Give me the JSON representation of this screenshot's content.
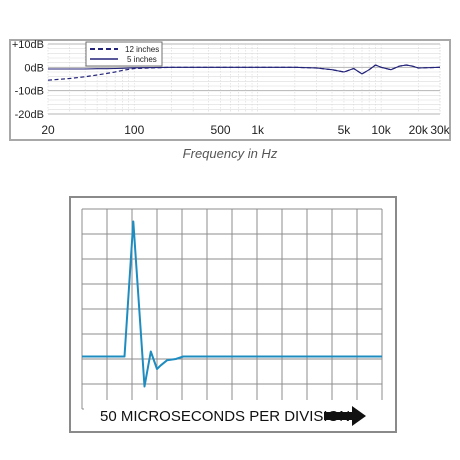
{
  "chart_data": [
    {
      "type": "line",
      "xlabel": "Frequency in Hz",
      "x_scale": "log",
      "xlim": [
        20,
        30000
      ],
      "ylim": [
        -20,
        10
      ],
      "x_ticks": [
        {
          "value": 20,
          "label": "20"
        },
        {
          "value": 100,
          "label": "100"
        },
        {
          "value": 500,
          "label": "500"
        },
        {
          "value": 1000,
          "label": "1k"
        },
        {
          "value": 5000,
          "label": "5k"
        },
        {
          "value": 10000,
          "label": "10k"
        },
        {
          "value": 20000,
          "label": "20k"
        },
        {
          "value": 30000,
          "label": "30k"
        }
      ],
      "y_ticks": [
        {
          "value": 10,
          "label": "+10dB"
        },
        {
          "value": 0,
          "label": "0dB"
        },
        {
          "value": -10,
          "label": "-10dB"
        },
        {
          "value": -20,
          "label": "-20dB"
        }
      ],
      "grid": true,
      "legend": "top-left",
      "series": [
        {
          "name": "12 inches",
          "style": "dashed",
          "color": "#23237a",
          "x": [
            20,
            30,
            40,
            50,
            60,
            70,
            80,
            100,
            200,
            500,
            1000,
            2000,
            3000,
            4000,
            5000,
            6000,
            7000,
            8000,
            9000,
            10000,
            12000,
            14000,
            16000,
            18000,
            20000,
            30000
          ],
          "y": [
            -5.5,
            -4.8,
            -4.0,
            -3.3,
            -2.6,
            -2.0,
            -1.3,
            -0.5,
            0,
            0,
            0,
            0,
            -0.3,
            -1.0,
            -2.0,
            -0.5,
            -2.8,
            -1.0,
            1.0,
            0,
            -1.0,
            0.5,
            1.0,
            0.5,
            -0.3,
            0
          ]
        },
        {
          "name": "5 inches",
          "style": "solid",
          "color": "#23237a",
          "x": [
            20,
            30,
            40,
            50,
            60,
            70,
            80,
            100,
            200,
            500,
            1000,
            2000,
            3000,
            4000,
            5000,
            6000,
            7000,
            8000,
            9000,
            10000,
            12000,
            14000,
            16000,
            18000,
            20000,
            30000
          ],
          "y": [
            -0.7,
            -0.7,
            -0.7,
            -0.6,
            -0.6,
            -0.5,
            -0.4,
            -0.2,
            0,
            0,
            0,
            0,
            -0.3,
            -1.0,
            -2.0,
            -0.5,
            -2.8,
            -1.0,
            1.0,
            0,
            -1.0,
            0.5,
            1.0,
            0.5,
            -0.3,
            0
          ]
        }
      ]
    },
    {
      "type": "line",
      "xlabel": "50 MICROSECONDS PER DIVISION",
      "x_divisions": 12,
      "y_divisions": 8,
      "grid": true,
      "xlim": [
        0,
        12
      ],
      "ylim": [
        0,
        8
      ],
      "series": [
        {
          "color": "#1f8cc0",
          "x": [
            0,
            1.7,
            2.05,
            2.5,
            2.75,
            3.0,
            3.15,
            3.4,
            3.75,
            4.05,
            12
          ],
          "y": [
            2.1,
            2.1,
            7.5,
            0.9,
            2.3,
            1.6,
            1.75,
            1.95,
            2.0,
            2.1,
            2.1
          ]
        }
      ]
    }
  ]
}
